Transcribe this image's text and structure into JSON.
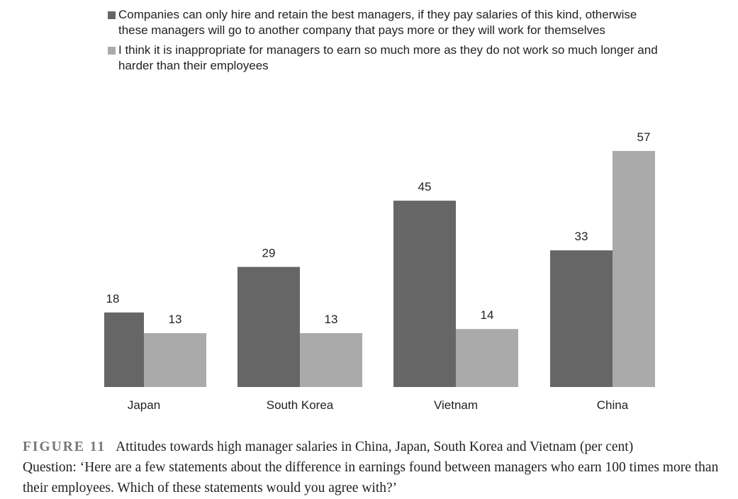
{
  "chart_data": {
    "type": "bar",
    "categories": [
      "Japan",
      "South Korea",
      "Vietnam",
      "China"
    ],
    "series": [
      {
        "name": "Companies can only hire and retain the best managers, if they pay salaries of this kind, otherwise these managers will go to another company that pays more or they will work for themselves",
        "color": "#666666",
        "values": [
          18,
          29,
          45,
          33
        ]
      },
      {
        "name": "I think it is inappropriate for managers to earn so much more as they do not work so much longer and harder than their employees",
        "color": "#aaaaaa",
        "values": [
          13,
          13,
          14,
          57
        ]
      }
    ],
    "caption": {
      "label": "FIGURE 11",
      "title": "Attitudes towards high manager salaries in China, Japan, South Korea and Vietnam (per cent)",
      "question": "Question: ‘Here are a few statements about the difference in earnings found between managers who earn 100 times more than their employees. Which of these statements would you agree with?’"
    }
  }
}
